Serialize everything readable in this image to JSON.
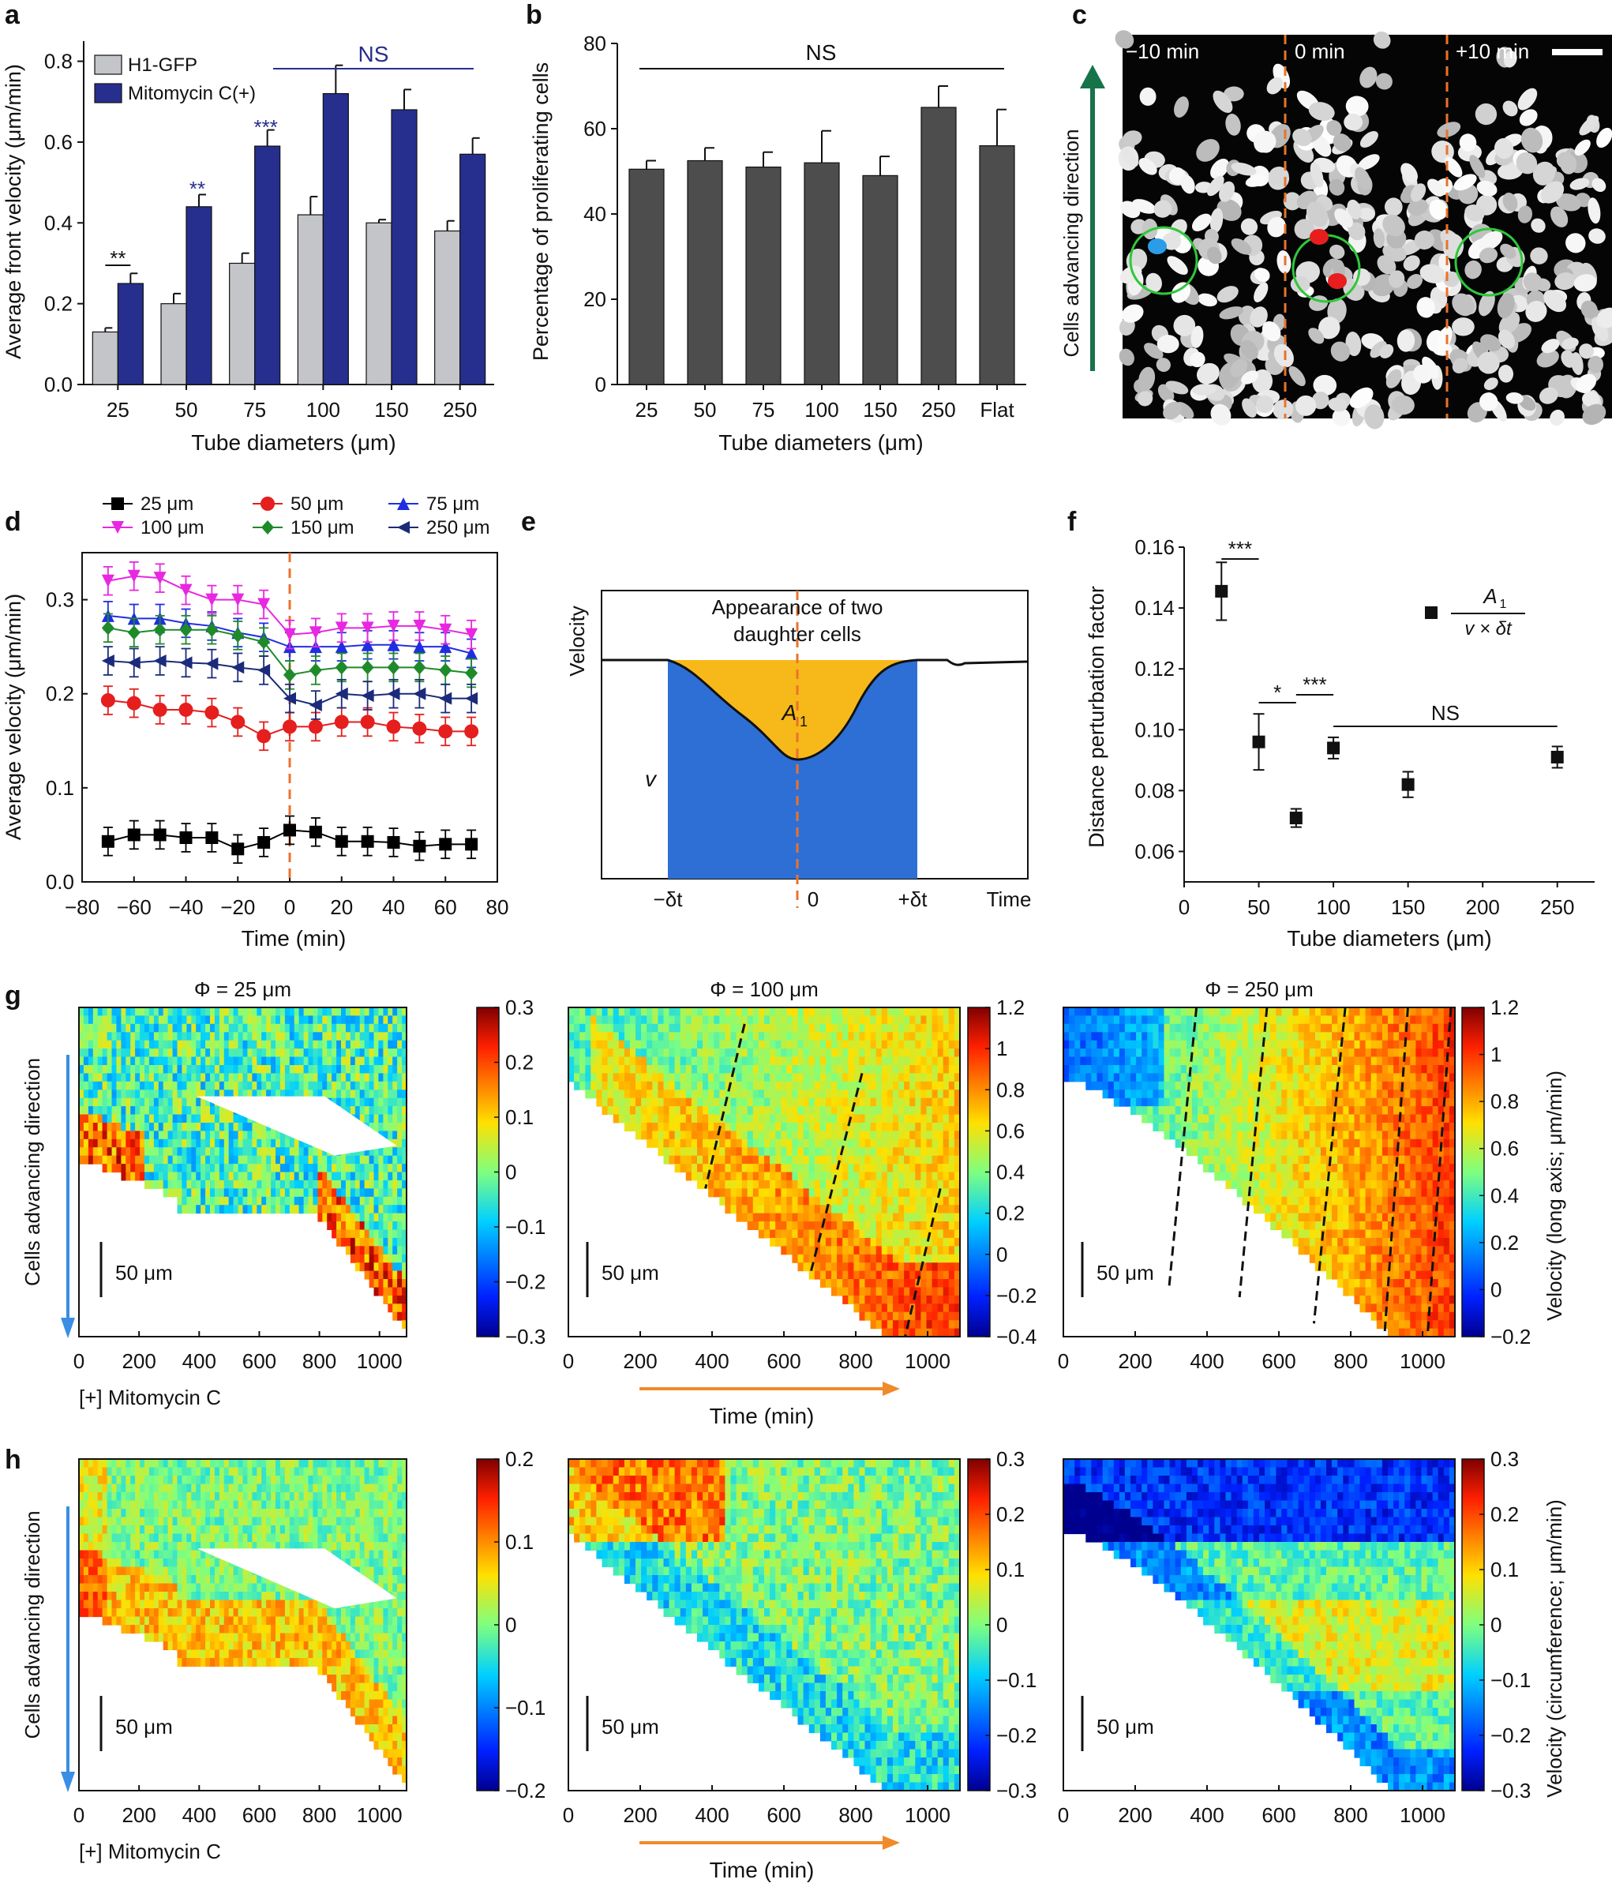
{
  "figure": {
    "panel_letters": [
      "a",
      "b",
      "c",
      "d",
      "e",
      "f",
      "g",
      "h"
    ]
  },
  "chart_data": [
    {
      "id": "a",
      "type": "bar",
      "categories": [
        "25",
        "50",
        "75",
        "100",
        "150",
        "250"
      ],
      "series": [
        {
          "name": "H1-GFP",
          "color": "#c3c5c9",
          "values": [
            0.13,
            0.2,
            0.3,
            0.42,
            0.4,
            0.38
          ],
          "errors": [
            0.01,
            0.025,
            0.025,
            0.045,
            0.008,
            0.025
          ]
        },
        {
          "name": "Mitomycin C(+)",
          "color": "#262f8e",
          "values": [
            0.25,
            0.44,
            0.59,
            0.72,
            0.68,
            0.57
          ],
          "errors": [
            0.025,
            0.03,
            0.04,
            0.07,
            0.05,
            0.04
          ]
        }
      ],
      "significance": [
        "**",
        "**",
        "***"
      ],
      "ns_label": "NS",
      "xlabel": "Tube diameters (μm)",
      "ylabel": "Average  front velocity (μm/min)",
      "ylim": [
        0,
        0.85
      ],
      "yticks": [
        "0.0",
        "0.2",
        "0.4",
        "0.6",
        "0.8"
      ]
    },
    {
      "id": "b",
      "type": "bar",
      "categories": [
        "25",
        "50",
        "75",
        "100",
        "150",
        "250",
        "Flat"
      ],
      "values": [
        50.5,
        52.5,
        51,
        52,
        49,
        65,
        56
      ],
      "errors": [
        2,
        3,
        3.5,
        7.5,
        4.5,
        5,
        8.5
      ],
      "color": "#4d4d4d",
      "ns_label": "NS",
      "xlabel": "Tube diameters (μm)",
      "ylabel": "Percentage of proliferating cells",
      "ylim": [
        0,
        80
      ],
      "yticks": [
        "0",
        "20",
        "40",
        "60",
        "80"
      ]
    },
    {
      "id": "c",
      "type": "image",
      "time_labels": [
        "−10 min",
        "0 min",
        "+10 min"
      ],
      "ylabel": "Cells advancing direction"
    },
    {
      "id": "d",
      "type": "line",
      "x": [
        -70,
        -60,
        -50,
        -40,
        -30,
        -20,
        -10,
        0,
        10,
        20,
        30,
        40,
        50,
        60,
        70
      ],
      "series": [
        {
          "name": "25 μm",
          "color": "#000000",
          "marker": "square",
          "values": [
            0.043,
            0.05,
            0.05,
            0.047,
            0.047,
            0.035,
            0.042,
            0.055,
            0.053,
            0.043,
            0.043,
            0.042,
            0.038,
            0.04,
            0.04
          ]
        },
        {
          "name": "50 μm",
          "color": "#e51e1e",
          "marker": "circle",
          "values": [
            0.193,
            0.19,
            0.183,
            0.183,
            0.18,
            0.17,
            0.155,
            0.165,
            0.165,
            0.17,
            0.17,
            0.165,
            0.163,
            0.16,
            0.16
          ]
        },
        {
          "name": "75 μm",
          "color": "#1f2fe0",
          "marker": "triangle-up",
          "values": [
            0.283,
            0.28,
            0.28,
            0.275,
            0.272,
            0.265,
            0.26,
            0.25,
            0.25,
            0.25,
            0.252,
            0.252,
            0.25,
            0.25,
            0.243
          ]
        },
        {
          "name": "100 μm",
          "color": "#e827e0",
          "marker": "triangle-down",
          "values": [
            0.32,
            0.325,
            0.323,
            0.31,
            0.3,
            0.3,
            0.295,
            0.263,
            0.265,
            0.27,
            0.27,
            0.272,
            0.272,
            0.268,
            0.263
          ]
        },
        {
          "name": "150 μm",
          "color": "#1f8a2a",
          "marker": "diamond",
          "values": [
            0.27,
            0.265,
            0.268,
            0.268,
            0.268,
            0.262,
            0.255,
            0.22,
            0.225,
            0.228,
            0.228,
            0.228,
            0.228,
            0.225,
            0.222
          ]
        },
        {
          "name": "250 μm",
          "color": "#1b2a7a",
          "marker": "triangle-left",
          "values": [
            0.235,
            0.233,
            0.235,
            0.233,
            0.232,
            0.228,
            0.225,
            0.195,
            0.188,
            0.2,
            0.198,
            0.2,
            0.2,
            0.195,
            0.195
          ]
        }
      ],
      "error": 0.015,
      "xlabel": "Time (min)",
      "ylabel": "Average velocity (μm/min)",
      "xlim": [
        -80,
        80
      ],
      "ylim": [
        0,
        0.35
      ],
      "xticks": [
        "−80",
        "−60",
        "−40",
        "−20",
        "0",
        "20",
        "40",
        "60",
        "80"
      ],
      "yticks": [
        "0.0",
        "0.1",
        "0.2",
        "0.3"
      ]
    },
    {
      "id": "e",
      "type": "area",
      "title_line1": "Appearance of two",
      "title_line2": "daughter cells",
      "ylabel": "Velocity",
      "xlabel": "Time",
      "area_label": "A",
      "area_sub": "1",
      "v_label": "v",
      "ticks": [
        "−δt",
        "0",
        "+δt"
      ]
    },
    {
      "id": "f",
      "type": "scatter",
      "x": [
        25,
        50,
        75,
        100,
        150,
        250
      ],
      "y": [
        0.1455,
        0.096,
        0.071,
        0.094,
        0.082,
        0.091
      ],
      "errors": [
        0.0095,
        0.0092,
        0.003,
        0.0035,
        0.0042,
        0.0035
      ],
      "significance": [
        "***",
        "*",
        "***"
      ],
      "ns_label": "NS",
      "legend_num": "A",
      "legend_num_sub": "1",
      "legend_den": "v × δt",
      "xlabel": "Tube diameters (μm)",
      "ylabel": "Distance perturbation factor",
      "xlim": [
        0,
        275
      ],
      "ylim": [
        0.05,
        0.16
      ],
      "xticks": [
        "0",
        "50",
        "100",
        "150",
        "200",
        "250"
      ],
      "yticks": [
        "0.06",
        "0.08",
        "0.10",
        "0.12",
        "0.14",
        "0.16"
      ]
    },
    {
      "id": "g",
      "type": "heatmap",
      "titles": [
        "Φ = 25 μm",
        "Φ = 100 μm",
        "Φ = 250 μm"
      ],
      "colorbars": [
        [
          "0.3",
          "0.2",
          "0.1",
          "0",
          "−0.1",
          "−0.2",
          "−0.3"
        ],
        [
          "1.2",
          "1",
          "0.8",
          "0.6",
          "0.4",
          "0.2",
          "0",
          "−0.2",
          "−0.4"
        ],
        [
          "1.2",
          "1",
          "0.8",
          "0.6",
          "0.4",
          "0.2",
          "0",
          "−0.2"
        ]
      ],
      "cbar_label": "Velocity (long axis; μm/min)",
      "xticks": [
        "0",
        "200",
        "400",
        "600",
        "800",
        "1000"
      ],
      "scale_label": "50 μm",
      "ylabel": "Cells advancing direction",
      "sublabel": "[+] Mitomycin C",
      "xlabel": "Time (min)"
    },
    {
      "id": "h",
      "type": "heatmap",
      "colorbars": [
        [
          "0.2",
          "0.1",
          "0",
          "−0.1",
          "−0.2"
        ],
        [
          "0.3",
          "0.2",
          "0.1",
          "0",
          "−0.1",
          "−0.2",
          "−0.3"
        ],
        [
          "0.3",
          "0.2",
          "0.1",
          "0",
          "−0.1",
          "−0.2",
          "−0.3"
        ]
      ],
      "cbar_label": "Velocity (circumference; μm/min)",
      "xticks": [
        "0",
        "200",
        "400",
        "600",
        "800",
        "1000"
      ],
      "scale_label": "50 μm",
      "ylabel": "Cells advancing direction",
      "sublabel": "[+] Mitomycin C",
      "xlabel": "Time (min)"
    }
  ]
}
